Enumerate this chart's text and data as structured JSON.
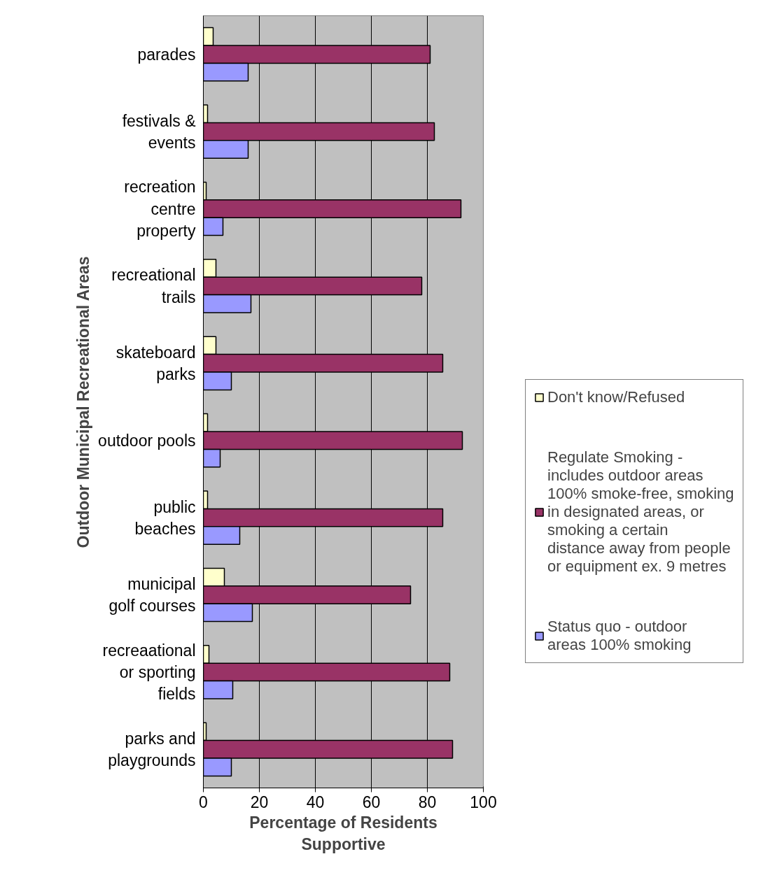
{
  "chart_data": {
    "type": "bar",
    "orientation": "horizontal",
    "xlabel": "Percentage of Residents Supportive",
    "ylabel": "Outdoor Municipal Recreational Areas",
    "categories": [
      "parades",
      "festivals & events",
      "recreation centre property",
      "recreational trails",
      "skateboard parks",
      "outdoor pools",
      "public beaches",
      "municipal golf courses",
      "recreaational or sporting fields",
      "parks and playgrounds"
    ],
    "series": [
      {
        "name": "Don't know/Refused",
        "color": "#ffffcc",
        "values": [
          3.5,
          1.5,
          1,
          4.5,
          4.5,
          1.5,
          1.5,
          7.5,
          2,
          1
        ]
      },
      {
        "name": "Regulate Smoking - includes outdoor areas 100% smoke-free, smoking in designated areas, or smoking a certain distance away from people or equipment ex. 9 metres",
        "color": "#993366",
        "values": [
          81,
          82.5,
          92,
          78,
          85.5,
          92.5,
          85.5,
          74,
          88,
          89
        ]
      },
      {
        "name": "Status quo - outdoor areas 100% smoking",
        "color": "#9999ff",
        "values": [
          16,
          16,
          7,
          17,
          10,
          6,
          13,
          17.5,
          10.5,
          10
        ]
      }
    ],
    "xlim": [
      0,
      100
    ],
    "xticks": [
      0,
      20,
      40,
      60,
      80,
      100
    ],
    "grid": "x",
    "legend": "right"
  }
}
